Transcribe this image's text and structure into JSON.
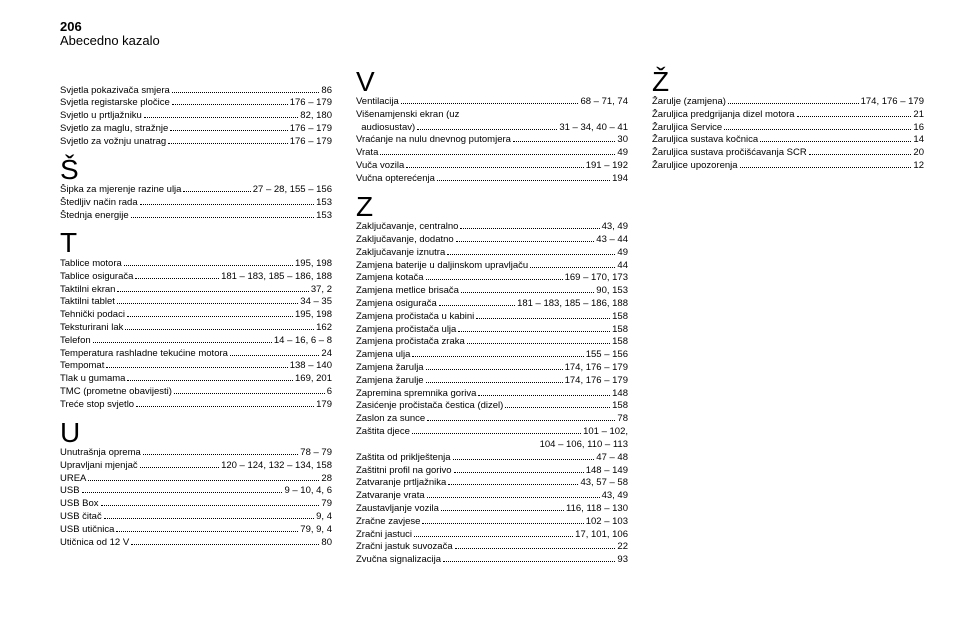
{
  "header": {
    "page_number": "206",
    "title": "Abecedno kazalo"
  },
  "columns": [
    {
      "groups": [
        {
          "letter": "",
          "spacer": true,
          "entries": [
            {
              "label": "Svjetla pokazivača smjera",
              "pages": "86"
            },
            {
              "label": "Svjetla registarske pločice",
              "pages": "176 – 179"
            },
            {
              "label": "Svjetlo u prtljažniku",
              "pages": "82, 180"
            },
            {
              "label": "Svjetlo za maglu, stražnje",
              "pages": "176 – 179"
            },
            {
              "label": "Svjetlo za vožnju unatrag",
              "pages": "176 – 179"
            }
          ]
        },
        {
          "letter": "Š",
          "entries": [
            {
              "label": "Šipka za mjerenje razine ulja",
              "pages": "27 – 28, 155 – 156"
            },
            {
              "label": "Štedljiv način rada",
              "pages": "153"
            },
            {
              "label": "Štednja energije",
              "pages": "153"
            }
          ]
        },
        {
          "letter": "T",
          "entries": [
            {
              "label": "Tablice motora",
              "pages": "195, 198"
            },
            {
              "label": "Tablice osigurača",
              "pages": "181 – 183, 185 – 186, 188"
            },
            {
              "label": "Taktilni ekran",
              "pages": "37, 2"
            },
            {
              "label": "Taktilni tablet",
              "pages": "34 – 35"
            },
            {
              "label": "Tehnički podaci",
              "pages": "195, 198"
            },
            {
              "label": "Teksturirani lak",
              "pages": "162"
            },
            {
              "label": "Telefon",
              "pages": "14 – 16, 6 – 8"
            },
            {
              "label": "Temperatura rashladne tekućine motora",
              "pages": "24"
            },
            {
              "label": "Tempomat",
              "pages": "138 – 140"
            },
            {
              "label": "Tlak u gumama",
              "pages": "169, 201"
            },
            {
              "label": "TMC (prometne obavijesti)",
              "pages": "6"
            },
            {
              "label": "Treće stop svjetlo",
              "pages": "179"
            }
          ]
        },
        {
          "letter": "U",
          "entries": [
            {
              "label": "Unutrašnja oprema",
              "pages": "78 – 79"
            },
            {
              "label": "Upravljani mjenjač",
              "pages": "120 – 124, 132 – 134, 158"
            },
            {
              "label": "UREA",
              "pages": "28"
            },
            {
              "label": "USB",
              "pages": "9 – 10, 4, 6"
            },
            {
              "label": "USB Box",
              "pages": "79"
            },
            {
              "label": "USB čitač",
              "pages": "9, 4"
            },
            {
              "label": "USB utičnica",
              "pages": "79, 9, 4"
            },
            {
              "label": "Utičnica od 12 V",
              "pages": "80"
            }
          ]
        }
      ]
    },
    {
      "groups": [
        {
          "letter": "V",
          "entries": [
            {
              "label": "Ventilacija",
              "pages": "68 – 71, 74"
            },
            {
              "label": "Višenamjenski ekran (uz",
              "pages": "",
              "noDots": true
            },
            {
              "label": "  audiosustav)",
              "pages": "31 – 34, 40 – 41"
            },
            {
              "label": "Vraćanje na nulu dnevnog putomjera",
              "pages": "30"
            },
            {
              "label": "Vrata",
              "pages": "49"
            },
            {
              "label": "Vuča vozila",
              "pages": "191 – 192"
            },
            {
              "label": "Vučna opterećenja",
              "pages": "194"
            }
          ]
        },
        {
          "letter": "Z",
          "entries": [
            {
              "label": "Zaključavanje, centralno",
              "pages": "43, 49"
            },
            {
              "label": "Zaključavanje, dodatno",
              "pages": "43 – 44"
            },
            {
              "label": "Zaključavanje iznutra",
              "pages": "49"
            },
            {
              "label": "Zamjena baterije u daljinskom upravljaču",
              "pages": "44"
            },
            {
              "label": "Zamjena kotača",
              "pages": "169 – 170, 173"
            },
            {
              "label": "Zamjena metlice brisača",
              "pages": "90, 153"
            },
            {
              "label": "Zamjena osigurača",
              "pages": "181 – 183, 185 – 186, 188"
            },
            {
              "label": "Zamjena pročistača u kabini",
              "pages": "158"
            },
            {
              "label": "Zamjena pročistača ulja",
              "pages": "158"
            },
            {
              "label": "Zamjena pročistača zraka",
              "pages": "158"
            },
            {
              "label": "Zamjena ulja",
              "pages": "155 – 156"
            },
            {
              "label": "Zamjena žarulja",
              "pages": "174, 176 – 179"
            },
            {
              "label": "Zamjena žarulje",
              "pages": "174, 176 – 179"
            },
            {
              "label": "Zapremina spremnika goriva",
              "pages": "148"
            },
            {
              "label": "Zasićenje pročistača čestica (dizel)",
              "pages": "158"
            },
            {
              "label": "Zaslon za sunce",
              "pages": "78"
            },
            {
              "label": "Zaštita djece",
              "pages": "101 – 102,"
            },
            {
              "label": "",
              "pages": "104 – 106, 110 – 113",
              "continuation": true
            },
            {
              "label": "Zaštita od priklještenja",
              "pages": "47 – 48"
            },
            {
              "label": "Zaštitni profil na gorivo",
              "pages": "148 – 149"
            },
            {
              "label": "Zatvaranje prtljažnika",
              "pages": "43, 57 – 58"
            },
            {
              "label": "Zatvaranje vrata",
              "pages": "43, 49"
            },
            {
              "label": "Zaustavljanje vozila",
              "pages": "116, 118 – 130"
            },
            {
              "label": "Zračne zavjese",
              "pages": "102 – 103"
            },
            {
              "label": "Zračni jastuci",
              "pages": "17, 101, 106"
            },
            {
              "label": "Zračni jastuk suvozača",
              "pages": "22"
            },
            {
              "label": "Zvučna signalizacija",
              "pages": "93"
            }
          ]
        }
      ]
    },
    {
      "groups": [
        {
          "letter": "Ž",
          "entries": [
            {
              "label": "Žarulje (zamjena)",
              "pages": "174, 176 – 179"
            },
            {
              "label": "Žaruljica predgrijanja dizel motora",
              "pages": "21"
            },
            {
              "label": "Žaruljica Service",
              "pages": "16"
            },
            {
              "label": "Žaruljica sustava kočnica",
              "pages": "14"
            },
            {
              "label": "Žaruljica sustava pročišćavanja SCR",
              "pages": "20"
            },
            {
              "label": "Žaruljice upozorenja",
              "pages": "12"
            }
          ]
        }
      ]
    }
  ]
}
